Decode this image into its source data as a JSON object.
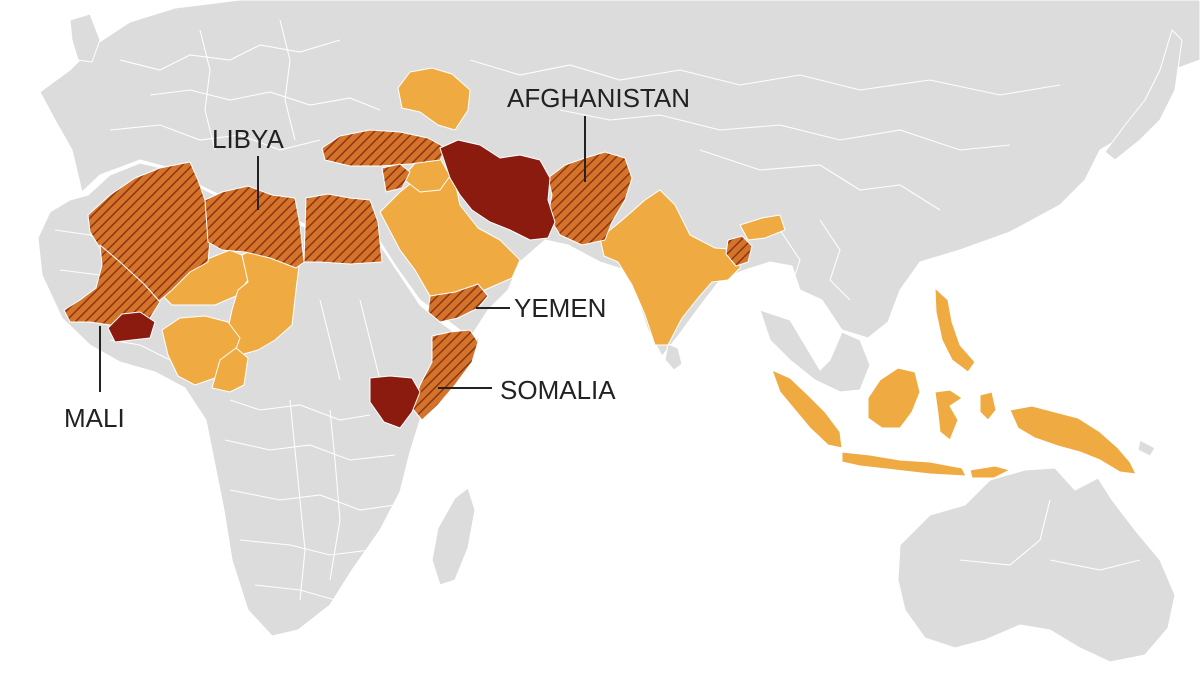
{
  "colors": {
    "background": "#ffffff",
    "land": "#dcdcdc",
    "light": "#efab41",
    "hatched_fill": "#d3742a",
    "hatch_line": "#8e3414",
    "dark": "#8b1a0f"
  },
  "labels": {
    "afghanistan": "AFGHANISTAN",
    "libya": "LIBYA",
    "yemen": "YEMEN",
    "mali": "MALI",
    "somalia": "SOMALIA"
  }
}
